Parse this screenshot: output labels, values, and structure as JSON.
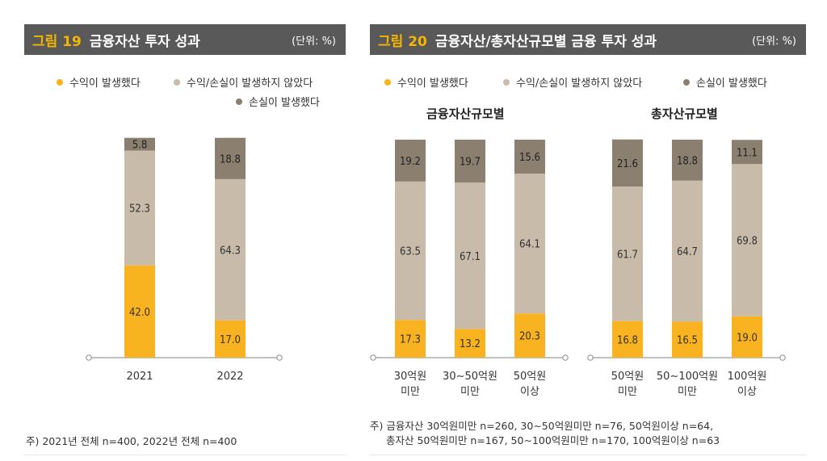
{
  "colors": {
    "profit": "#F9B220",
    "none": "#C9BBA9",
    "loss": "#8B8070"
  },
  "fig19": {
    "num": "그림 19",
    "title": "금융자산 투자 성과",
    "unit": "(단위: %)",
    "legend": [
      "수익이 발생했다",
      "수익/손실이 발생하지 않았다",
      "손실이 발생했다"
    ],
    "note": "주) 2021년 전체 n=400, 2022년 전체 n=400"
  },
  "fig20": {
    "num": "그림 20",
    "title": "금융자산/총자산규모별 금융 투자 성과",
    "unit": "(단위: %)",
    "legend": [
      "수익이 발생했다",
      "수익/손실이 발생하지 않았다",
      "손실이 발생했다"
    ],
    "group1": "금융자산규모별",
    "group2": "총자산규모별",
    "note1": "주) 금융자산 30억원미만 n=260, 30∼50억원미만 n=76, 50억원이상 n=64,",
    "note2": "총자산 50억원미만 n=167, 50∼100억원미만 n=170, 100억원이상 n=63"
  },
  "chart_data": [
    {
      "type": "bar",
      "stacked": true,
      "title": "금융자산 투자 성과",
      "categories": [
        "2021",
        "2022"
      ],
      "series": [
        {
          "name": "수익이 발생했다",
          "values": [
            42.0,
            17.0
          ]
        },
        {
          "name": "수익/손실이 발생하지 않았다",
          "values": [
            52.3,
            64.3
          ]
        },
        {
          "name": "손실이 발생했다",
          "values": [
            5.8,
            18.8
          ]
        }
      ],
      "ylim": [
        0,
        100
      ]
    },
    {
      "type": "bar",
      "stacked": true,
      "title": "금융자산규모별",
      "categories": [
        [
          "30억원",
          "미만"
        ],
        [
          "30∼50억원",
          "미만"
        ],
        [
          "50억원",
          "이상"
        ]
      ],
      "series": [
        {
          "name": "수익이 발생했다",
          "values": [
            17.3,
            13.2,
            20.3
          ]
        },
        {
          "name": "수익/손실이 발생하지 않았다",
          "values": [
            63.5,
            67.1,
            64.1
          ]
        },
        {
          "name": "손실이 발생했다",
          "values": [
            19.2,
            19.7,
            15.6
          ]
        }
      ],
      "ylim": [
        0,
        100
      ]
    },
    {
      "type": "bar",
      "stacked": true,
      "title": "총자산규모별",
      "categories": [
        [
          "50억원",
          "미만"
        ],
        [
          "50∼100억원",
          "미만"
        ],
        [
          "100억원",
          "이상"
        ]
      ],
      "series": [
        {
          "name": "수익이 발생했다",
          "values": [
            16.8,
            16.5,
            19.0
          ]
        },
        {
          "name": "수익/손실이 발생하지 않았다",
          "values": [
            61.7,
            64.7,
            69.8
          ]
        },
        {
          "name": "손실이 발생했다",
          "values": [
            21.6,
            18.8,
            11.1
          ]
        }
      ],
      "ylim": [
        0,
        100
      ]
    }
  ]
}
